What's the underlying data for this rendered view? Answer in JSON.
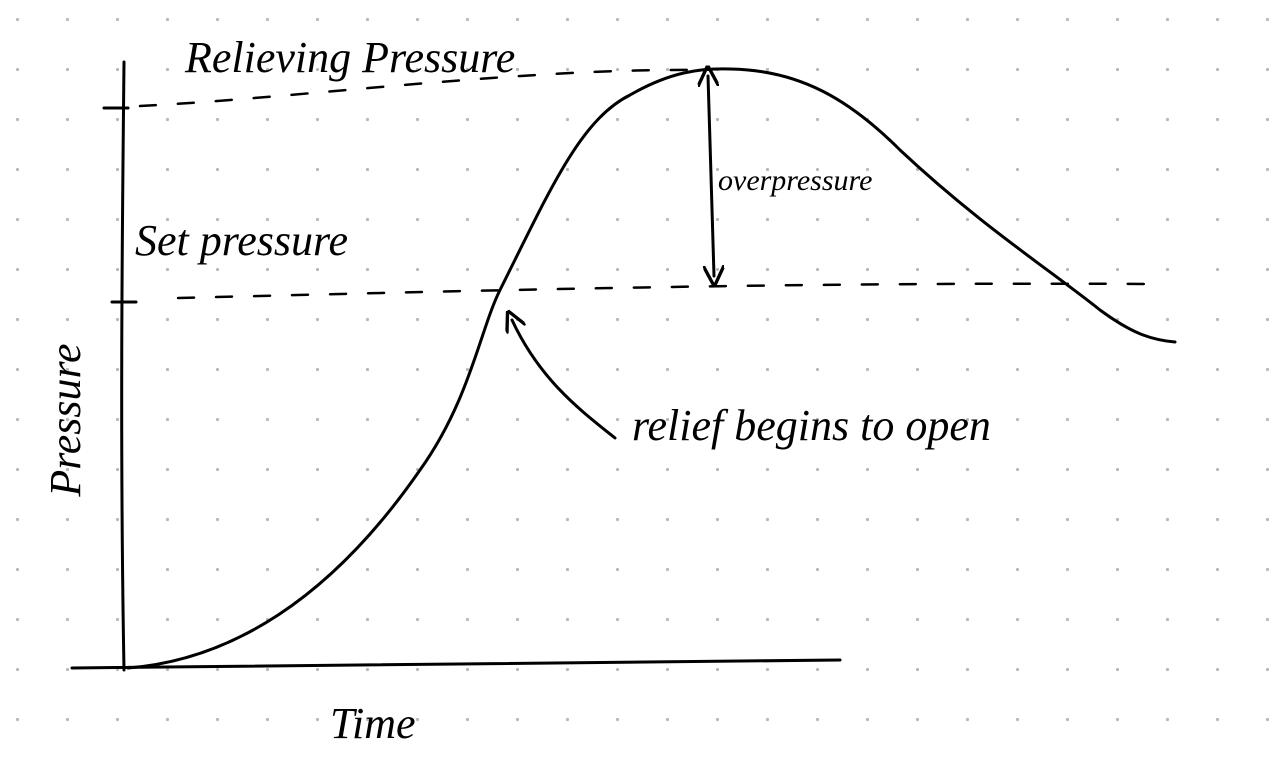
{
  "labels": {
    "relieving_pressure": "Relieving Pressure",
    "set_pressure": "Set pressure",
    "overpressure": "overpressure",
    "relief_opens": "relief begins to open",
    "y_axis": "Pressure",
    "x_axis": "Time"
  }
}
